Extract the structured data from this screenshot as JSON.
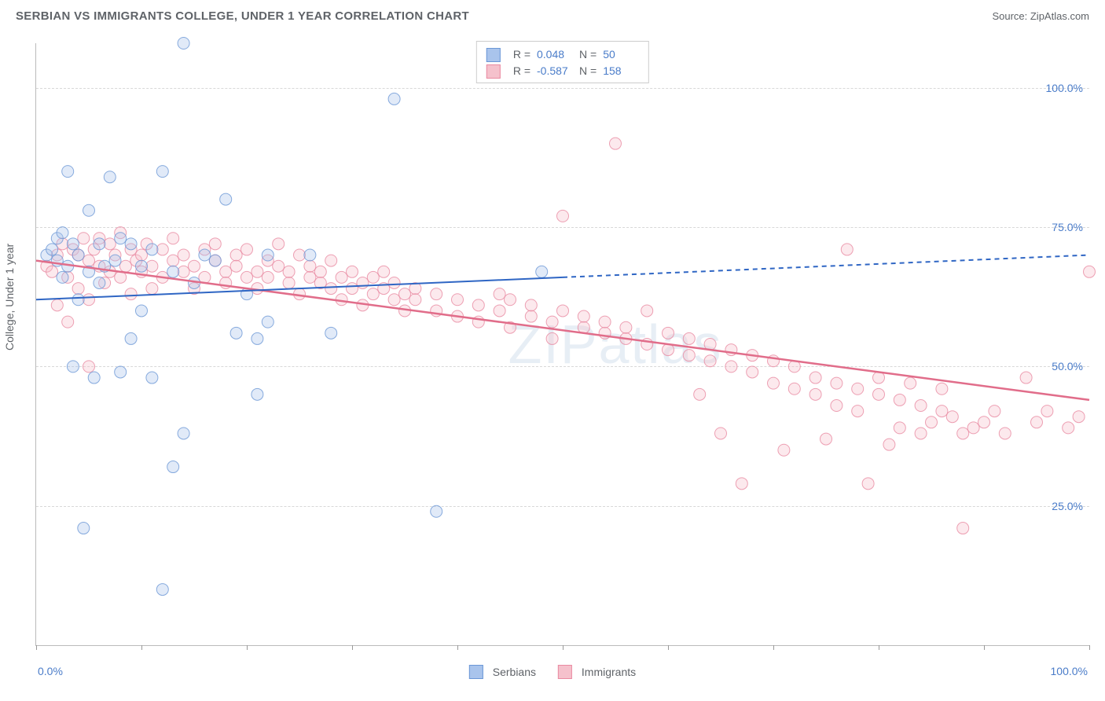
{
  "title": "SERBIAN VS IMMIGRANTS COLLEGE, UNDER 1 YEAR CORRELATION CHART",
  "source_label": "Source: ZipAtlas.com",
  "ylabel": "College, Under 1 year",
  "watermark": "ZIPatlas",
  "chart": {
    "type": "scatter",
    "xlim": [
      0,
      100
    ],
    "ylim": [
      0,
      108
    ],
    "ytick_labels": [
      "25.0%",
      "50.0%",
      "75.0%",
      "100.0%"
    ],
    "ytick_vals": [
      25,
      50,
      75,
      100
    ],
    "xtick_vals": [
      0,
      10,
      20,
      30,
      40,
      50,
      60,
      70,
      80,
      90,
      100
    ],
    "x0_label": "0.0%",
    "x100_label": "100.0%",
    "background_color": "#ffffff",
    "grid_color": "#d8d8d8",
    "axis_color": "#bbbbbb",
    "marker_radius": 7.5,
    "marker_opacity_fill": 0.35,
    "marker_opacity_stroke": 0.8,
    "series": {
      "serbian": {
        "label": "Serbians",
        "color_fill": "#a9c4ec",
        "color_stroke": "#6b97d6",
        "r_label": "0.048",
        "n_label": "50",
        "trend": {
          "y_at_x0": 62,
          "y_at_x100": 70,
          "solid_until_x": 50,
          "color": "#2f66c4",
          "width": 2
        },
        "points": [
          [
            1,
            70
          ],
          [
            1.5,
            71
          ],
          [
            2,
            69
          ],
          [
            2,
            73
          ],
          [
            2.5,
            66
          ],
          [
            2.5,
            74
          ],
          [
            3,
            68
          ],
          [
            3,
            85
          ],
          [
            3.5,
            72
          ],
          [
            3.5,
            50
          ],
          [
            4,
            62
          ],
          [
            4,
            70
          ],
          [
            4.5,
            21
          ],
          [
            5,
            67
          ],
          [
            5,
            78
          ],
          [
            5.5,
            48
          ],
          [
            6,
            65
          ],
          [
            6,
            72
          ],
          [
            6.5,
            68
          ],
          [
            7,
            84
          ],
          [
            7.5,
            69
          ],
          [
            8,
            49
          ],
          [
            8,
            73
          ],
          [
            9,
            72
          ],
          [
            9,
            55
          ],
          [
            10,
            68
          ],
          [
            10,
            60
          ],
          [
            11,
            71
          ],
          [
            11,
            48
          ],
          [
            12,
            85
          ],
          [
            12,
            10
          ],
          [
            13,
            67
          ],
          [
            13,
            32
          ],
          [
            14,
            38
          ],
          [
            14,
            108
          ],
          [
            15,
            65
          ],
          [
            16,
            70
          ],
          [
            17,
            69
          ],
          [
            18,
            80
          ],
          [
            19,
            56
          ],
          [
            20,
            63
          ],
          [
            21,
            55
          ],
          [
            21,
            45
          ],
          [
            22,
            70
          ],
          [
            22,
            58
          ],
          [
            26,
            70
          ],
          [
            28,
            56
          ],
          [
            34,
            98
          ],
          [
            38,
            24
          ],
          [
            48,
            67
          ]
        ]
      },
      "immigrants": {
        "label": "Immigrants",
        "color_fill": "#f5c1cc",
        "color_stroke": "#e98aa1",
        "r_label": "-0.587",
        "n_label": "158",
        "trend": {
          "y_at_x0": 69,
          "y_at_x100": 44,
          "solid_until_x": 100,
          "color": "#e16d8a",
          "width": 2.5
        },
        "points": [
          [
            1,
            68
          ],
          [
            1.5,
            67
          ],
          [
            2,
            61
          ],
          [
            2,
            70
          ],
          [
            2.5,
            72
          ],
          [
            3,
            58
          ],
          [
            3,
            66
          ],
          [
            3.5,
            71
          ],
          [
            4,
            64
          ],
          [
            4,
            70
          ],
          [
            4.5,
            73
          ],
          [
            5,
            62
          ],
          [
            5,
            69
          ],
          [
            5,
            50
          ],
          [
            5.5,
            71
          ],
          [
            6,
            68
          ],
          [
            6,
            73
          ],
          [
            6.5,
            65
          ],
          [
            7,
            67
          ],
          [
            7,
            72
          ],
          [
            7.5,
            70
          ],
          [
            8,
            66
          ],
          [
            8,
            74
          ],
          [
            8.5,
            68
          ],
          [
            9,
            71
          ],
          [
            9,
            63
          ],
          [
            9.5,
            69
          ],
          [
            10,
            70
          ],
          [
            10,
            67
          ],
          [
            10.5,
            72
          ],
          [
            11,
            68
          ],
          [
            11,
            64
          ],
          [
            12,
            71
          ],
          [
            12,
            66
          ],
          [
            13,
            69
          ],
          [
            13,
            73
          ],
          [
            14,
            67
          ],
          [
            14,
            70
          ],
          [
            15,
            68
          ],
          [
            15,
            64
          ],
          [
            16,
            71
          ],
          [
            16,
            66
          ],
          [
            17,
            69
          ],
          [
            17,
            72
          ],
          [
            18,
            67
          ],
          [
            18,
            65
          ],
          [
            19,
            70
          ],
          [
            19,
            68
          ],
          [
            20,
            66
          ],
          [
            20,
            71
          ],
          [
            21,
            67
          ],
          [
            21,
            64
          ],
          [
            22,
            69
          ],
          [
            22,
            66
          ],
          [
            23,
            68
          ],
          [
            23,
            72
          ],
          [
            24,
            65
          ],
          [
            24,
            67
          ],
          [
            25,
            70
          ],
          [
            25,
            63
          ],
          [
            26,
            66
          ],
          [
            26,
            68
          ],
          [
            27,
            65
          ],
          [
            27,
            67
          ],
          [
            28,
            64
          ],
          [
            28,
            69
          ],
          [
            29,
            66
          ],
          [
            29,
            62
          ],
          [
            30,
            67
          ],
          [
            30,
            64
          ],
          [
            31,
            65
          ],
          [
            31,
            61
          ],
          [
            32,
            66
          ],
          [
            32,
            63
          ],
          [
            33,
            64
          ],
          [
            33,
            67
          ],
          [
            34,
            62
          ],
          [
            34,
            65
          ],
          [
            35,
            63
          ],
          [
            35,
            60
          ],
          [
            36,
            64
          ],
          [
            36,
            62
          ],
          [
            38,
            63
          ],
          [
            38,
            60
          ],
          [
            40,
            62
          ],
          [
            40,
            59
          ],
          [
            42,
            61
          ],
          [
            42,
            58
          ],
          [
            44,
            60
          ],
          [
            44,
            63
          ],
          [
            45,
            62
          ],
          [
            45,
            57
          ],
          [
            47,
            59
          ],
          [
            47,
            61
          ],
          [
            49,
            58
          ],
          [
            49,
            55
          ],
          [
            50,
            77
          ],
          [
            50,
            60
          ],
          [
            52,
            57
          ],
          [
            52,
            59
          ],
          [
            54,
            56
          ],
          [
            54,
            58
          ],
          [
            55,
            90
          ],
          [
            56,
            55
          ],
          [
            56,
            57
          ],
          [
            58,
            54
          ],
          [
            58,
            60
          ],
          [
            60,
            53
          ],
          [
            60,
            56
          ],
          [
            62,
            55
          ],
          [
            62,
            52
          ],
          [
            63,
            45
          ],
          [
            64,
            54
          ],
          [
            64,
            51
          ],
          [
            65,
            38
          ],
          [
            66,
            53
          ],
          [
            66,
            50
          ],
          [
            67,
            29
          ],
          [
            68,
            52
          ],
          [
            68,
            49
          ],
          [
            70,
            47
          ],
          [
            70,
            51
          ],
          [
            71,
            35
          ],
          [
            72,
            50
          ],
          [
            72,
            46
          ],
          [
            74,
            48
          ],
          [
            74,
            45
          ],
          [
            75,
            37
          ],
          [
            76,
            47
          ],
          [
            76,
            43
          ],
          [
            77,
            71
          ],
          [
            78,
            46
          ],
          [
            78,
            42
          ],
          [
            79,
            29
          ],
          [
            80,
            45
          ],
          [
            80,
            48
          ],
          [
            81,
            36
          ],
          [
            82,
            44
          ],
          [
            82,
            39
          ],
          [
            83,
            47
          ],
          [
            84,
            43
          ],
          [
            84,
            38
          ],
          [
            85,
            40
          ],
          [
            86,
            42
          ],
          [
            86,
            46
          ],
          [
            87,
            41
          ],
          [
            88,
            38
          ],
          [
            88,
            21
          ],
          [
            89,
            39
          ],
          [
            90,
            40
          ],
          [
            91,
            42
          ],
          [
            92,
            38
          ],
          [
            94,
            48
          ],
          [
            95,
            40
          ],
          [
            96,
            42
          ],
          [
            98,
            39
          ],
          [
            99,
            41
          ],
          [
            100,
            67
          ]
        ]
      }
    }
  },
  "top_legend": {
    "r_prefix": "R =",
    "n_prefix": "N ="
  }
}
